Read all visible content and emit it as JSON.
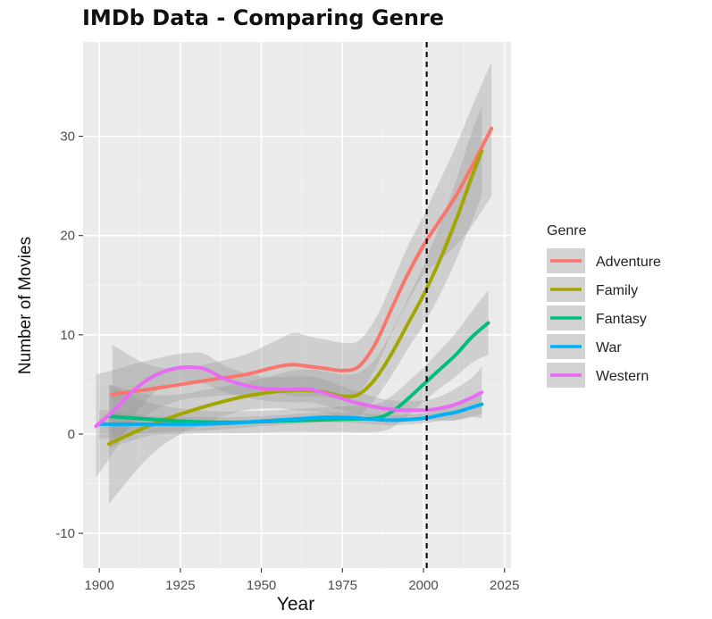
{
  "chart_data": {
    "type": "line",
    "title": "IMDb Data - Comparing Genre",
    "xlabel": "Year",
    "ylabel": "Number of Movies",
    "xlim": [
      1895,
      2027
    ],
    "ylim": [
      -13.5,
      39.5
    ],
    "x_ticks": [
      1900,
      1925,
      1950,
      1975,
      2000,
      2025
    ],
    "y_ticks": [
      -10,
      0,
      10,
      20,
      30
    ],
    "grid": true,
    "legend": {
      "title": "Genre",
      "position": "right"
    },
    "vline": {
      "x": 2001,
      "style": "dashed"
    },
    "series": [
      {
        "name": "Adventure",
        "color": "#F8766D",
        "x": [
          1904,
          1915,
          1925,
          1935,
          1945,
          1955,
          1960,
          1965,
          1970,
          1975,
          1980,
          1985,
          1990,
          1995,
          2000,
          2005,
          2010,
          2015,
          2021
        ],
        "y": [
          4.0,
          4.5,
          5.0,
          5.5,
          6.0,
          6.8,
          7.0,
          6.8,
          6.6,
          6.4,
          6.8,
          9.0,
          12.5,
          16.0,
          19.0,
          21.5,
          24.0,
          27.0,
          30.8
        ],
        "band_upper": [
          9.0,
          7.0,
          6.6,
          7.2,
          8.0,
          9.5,
          10.2,
          9.8,
          9.5,
          9.2,
          9.4,
          11.5,
          15.0,
          18.8,
          22.0,
          25.5,
          29.0,
          33.0,
          37.5
        ],
        "band_lower": [
          -1.0,
          2.0,
          3.4,
          3.8,
          4.0,
          4.1,
          3.8,
          3.8,
          3.7,
          3.6,
          4.2,
          6.5,
          10.0,
          13.2,
          16.0,
          17.5,
          19.0,
          21.0,
          24.0
        ]
      },
      {
        "name": "Family",
        "color": "#A3A500",
        "x": [
          1903,
          1915,
          1925,
          1935,
          1945,
          1955,
          1960,
          1965,
          1970,
          1975,
          1980,
          1985,
          1990,
          1995,
          2000,
          2005,
          2010,
          2015,
          2018
        ],
        "y": [
          -1.0,
          0.8,
          2.0,
          3.0,
          3.8,
          4.3,
          4.4,
          4.4,
          4.2,
          3.8,
          4.0,
          5.5,
          8.0,
          11.0,
          14.0,
          17.5,
          21.5,
          26.0,
          28.5
        ],
        "band_upper": [
          5.0,
          4.0,
          4.0,
          4.6,
          5.2,
          6.0,
          6.4,
          6.5,
          6.3,
          6.0,
          6.2,
          7.5,
          10.2,
          13.5,
          17.0,
          21.0,
          25.5,
          30.5,
          33.0
        ],
        "band_lower": [
          -7.0,
          -2.4,
          0.0,
          1.4,
          2.4,
          2.6,
          2.4,
          2.3,
          2.1,
          1.6,
          1.8,
          3.5,
          5.8,
          8.5,
          11.0,
          14.0,
          17.5,
          21.5,
          24.0
        ]
      },
      {
        "name": "Fantasy",
        "color": "#00BF7D",
        "x": [
          1903,
          1915,
          1925,
          1935,
          1945,
          1955,
          1965,
          1975,
          1985,
          1990,
          1995,
          2000,
          2005,
          2010,
          2015,
          2020
        ],
        "y": [
          1.8,
          1.5,
          1.3,
          1.2,
          1.2,
          1.3,
          1.4,
          1.5,
          1.6,
          2.2,
          3.5,
          5.0,
          6.5,
          8.0,
          9.8,
          11.2
        ],
        "band_upper": [
          5.0,
          3.2,
          2.6,
          2.3,
          2.3,
          2.4,
          2.6,
          2.8,
          3.0,
          3.8,
          5.2,
          6.7,
          8.4,
          10.2,
          12.4,
          14.5
        ],
        "band_lower": [
          -1.4,
          -0.2,
          0.0,
          0.1,
          0.1,
          0.2,
          0.2,
          0.2,
          0.2,
          0.6,
          1.8,
          3.3,
          4.6,
          5.8,
          7.2,
          8.0
        ]
      },
      {
        "name": "War",
        "color": "#00B0F6",
        "x": [
          1900,
          1910,
          1920,
          1930,
          1940,
          1950,
          1960,
          1970,
          1980,
          1990,
          2000,
          2005,
          2010,
          2015,
          2018
        ],
        "y": [
          1.0,
          1.0,
          1.0,
          1.0,
          1.1,
          1.3,
          1.5,
          1.7,
          1.6,
          1.4,
          1.6,
          1.9,
          2.2,
          2.7,
          3.0
        ],
        "band_upper": [
          2.5,
          2.0,
          1.8,
          1.7,
          1.7,
          1.8,
          2.0,
          2.2,
          2.1,
          1.9,
          2.1,
          2.5,
          3.0,
          3.6,
          4.0
        ],
        "band_lower": [
          -0.5,
          0.0,
          0.2,
          0.3,
          0.5,
          0.8,
          1.0,
          1.2,
          1.1,
          0.9,
          1.1,
          1.3,
          1.4,
          1.8,
          2.0
        ]
      },
      {
        "name": "Western",
        "color": "#E76BF3",
        "x": [
          1899,
          1905,
          1910,
          1915,
          1920,
          1925,
          1930,
          1933,
          1940,
          1950,
          1960,
          1965,
          1970,
          1980,
          1990,
          2000,
          2005,
          2010,
          2015,
          2018
        ],
        "y": [
          0.8,
          2.5,
          4.2,
          5.5,
          6.3,
          6.7,
          6.7,
          6.5,
          5.4,
          4.6,
          4.5,
          4.5,
          4.1,
          3.1,
          2.5,
          2.4,
          2.6,
          3.0,
          3.7,
          4.2
        ],
        "band_upper": [
          6.0,
          6.5,
          7.0,
          7.4,
          7.8,
          8.1,
          8.2,
          8.0,
          6.7,
          5.8,
          5.8,
          5.8,
          5.4,
          4.2,
          3.4,
          3.4,
          3.8,
          4.6,
          5.7,
          6.8
        ],
        "band_lower": [
          -4.4,
          -1.5,
          1.4,
          3.6,
          4.8,
          5.3,
          5.2,
          5.0,
          4.1,
          3.4,
          3.2,
          3.2,
          2.8,
          2.0,
          1.6,
          1.4,
          1.4,
          1.4,
          1.7,
          1.6
        ]
      }
    ]
  }
}
